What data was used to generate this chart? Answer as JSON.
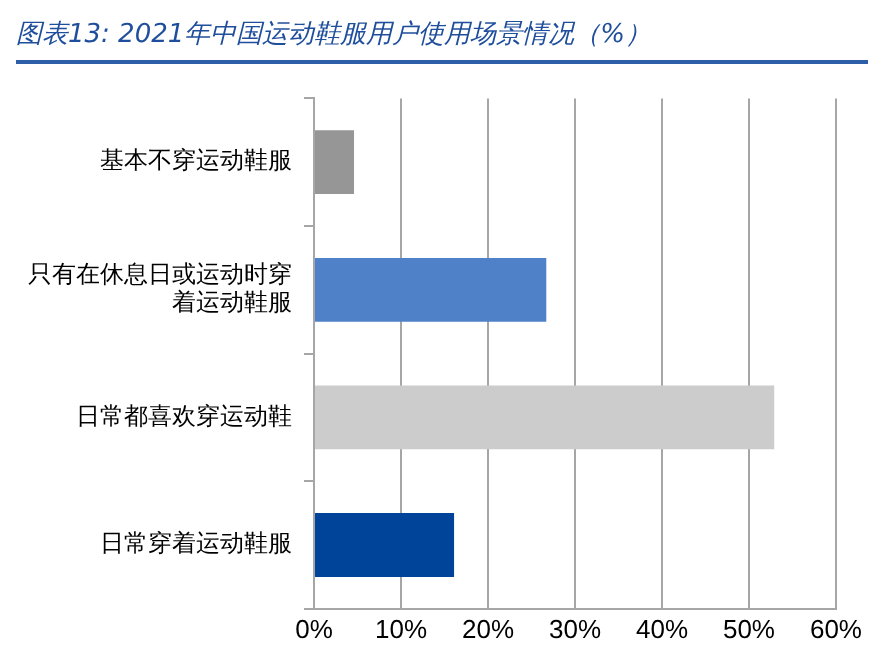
{
  "chart_data": {
    "type": "bar",
    "orientation": "horizontal",
    "title": "图表13: 2021年中国运动鞋服用户使用场景情况（%）",
    "categories": [
      "基本不穿运动鞋服",
      "只有在休息日或运动时穿着运动鞋服",
      "日常都喜欢穿运动鞋",
      "日常穿着运动鞋服"
    ],
    "values": [
      4.6,
      26.7,
      52.9,
      16.1
    ],
    "colors": [
      "#969696",
      "#4f81c9",
      "#cccccc",
      "#00449a"
    ],
    "xlim": [
      0,
      60
    ],
    "xticks": [
      {
        "value": 0,
        "label": "0%"
      },
      {
        "value": 10,
        "label": "10%"
      },
      {
        "value": 20,
        "label": "20%"
      },
      {
        "value": 30,
        "label": "30%"
      },
      {
        "value": 40,
        "label": "40%"
      },
      {
        "value": 50,
        "label": "50%"
      },
      {
        "value": 60,
        "label": "60%"
      }
    ],
    "grid": "x",
    "legend": false
  }
}
